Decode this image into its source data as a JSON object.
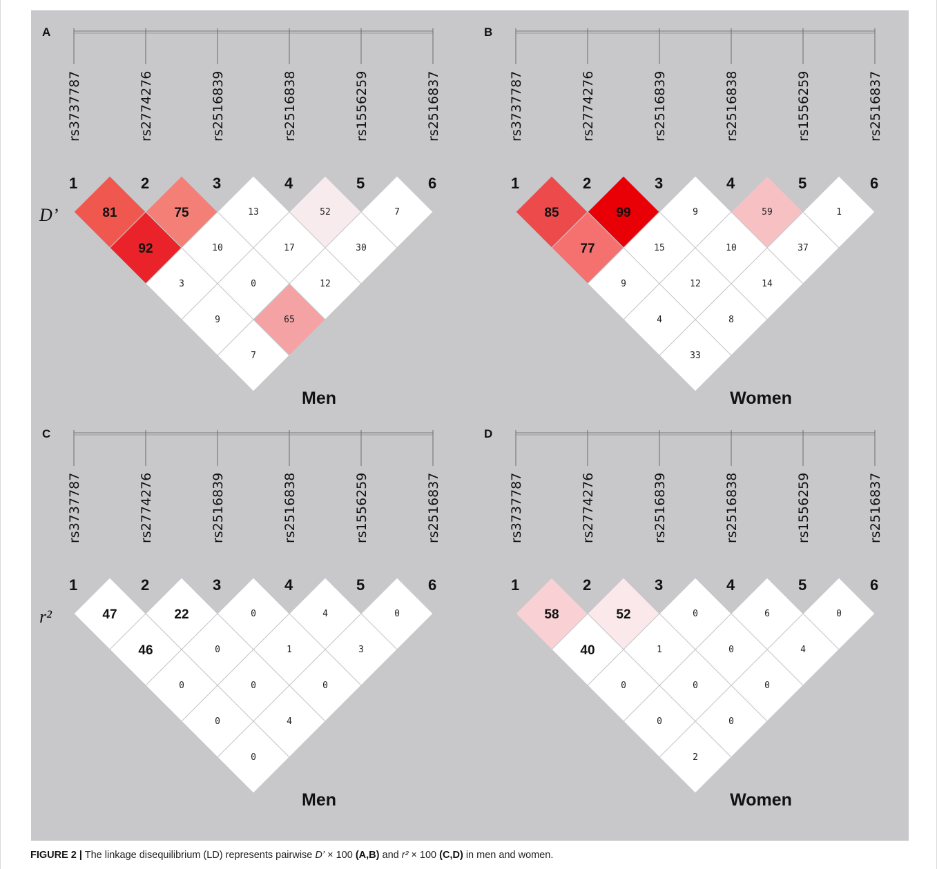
{
  "snps": [
    "rs3737787",
    "rs2774276",
    "rs2516839",
    "rs2516838",
    "rs1556259",
    "rs2516837"
  ],
  "indices": [
    "1",
    "2",
    "3",
    "4",
    "5",
    "6"
  ],
  "panels": [
    {
      "letter": "A",
      "metric": "D’",
      "group": "Men",
      "pairs": [
        [
          81,
          75,
          13,
          52,
          7
        ],
        [
          92,
          10,
          17,
          30
        ],
        [
          3,
          0,
          12
        ],
        [
          9,
          65
        ],
        [
          7
        ]
      ],
      "big_values": [
        81,
        75,
        92
      ]
    },
    {
      "letter": "B",
      "metric": "",
      "group": "Women",
      "pairs": [
        [
          85,
          99,
          9,
          59,
          1
        ],
        [
          77,
          15,
          10,
          37
        ],
        [
          9,
          12,
          14
        ],
        [
          4,
          8
        ],
        [
          33
        ]
      ],
      "big_values": [
        85,
        99,
        77
      ]
    },
    {
      "letter": "C",
      "metric": "r²",
      "group": "Men",
      "pairs": [
        [
          47,
          22,
          0,
          4,
          0
        ],
        [
          46,
          0,
          1,
          3
        ],
        [
          0,
          0,
          0
        ],
        [
          0,
          4
        ],
        [
          0
        ]
      ],
      "big_values": [
        47,
        22,
        46
      ]
    },
    {
      "letter": "D",
      "metric": "",
      "group": "Women",
      "pairs": [
        [
          58,
          52,
          0,
          6,
          0
        ],
        [
          40,
          1,
          0,
          4
        ],
        [
          0,
          0,
          0
        ],
        [
          0,
          0
        ],
        [
          2
        ]
      ],
      "big_values": [
        58,
        52,
        40
      ]
    }
  ],
  "cell_colors": {
    "A": [
      [
        "#f0584f",
        "#f47f77",
        "#ffffff",
        "#f8ebed",
        "#ffffff"
      ],
      [
        "#ea2229",
        "#ffffff",
        "#ffffff",
        "#ffffff"
      ],
      [
        "#ffffff",
        "#ffffff",
        "#ffffff"
      ],
      [
        "#ffffff",
        "#f5a2a5"
      ],
      [
        "#ffffff"
      ]
    ],
    "B": [
      [
        "#ec4a4b",
        "#e80006",
        "#ffffff",
        "#f7c1c3",
        "#ffffff"
      ],
      [
        "#f5716f",
        "#ffffff",
        "#ffffff",
        "#ffffff"
      ],
      [
        "#ffffff",
        "#ffffff",
        "#ffffff"
      ],
      [
        "#ffffff",
        "#ffffff"
      ],
      [
        "#ffffff"
      ]
    ],
    "C": [
      [
        "#ffffff",
        "#ffffff",
        "#ffffff",
        "#ffffff",
        "#ffffff"
      ],
      [
        "#ffffff",
        "#ffffff",
        "#ffffff",
        "#ffffff"
      ],
      [
        "#ffffff",
        "#ffffff",
        "#ffffff"
      ],
      [
        "#ffffff",
        "#ffffff"
      ],
      [
        "#ffffff"
      ]
    ],
    "D": [
      [
        "#f9d1d4",
        "#fae8ea",
        "#ffffff",
        "#ffffff",
        "#ffffff"
      ],
      [
        "#ffffff",
        "#ffffff",
        "#ffffff",
        "#ffffff"
      ],
      [
        "#ffffff",
        "#ffffff",
        "#ffffff"
      ],
      [
        "#ffffff",
        "#ffffff"
      ],
      [
        "#ffffff"
      ]
    ]
  },
  "caption": {
    "label": "FIGURE 2 |",
    "t1": " The linkage disequilibrium (LD) represents pairwise ",
    "d_symbol": "D’",
    "t2": " × 100 ",
    "ab": "(A,B)",
    "t3": " and ",
    "r_symbol": "r²",
    "t4": " × 100 ",
    "cd": "(C,D)",
    "t5": " in men and women."
  }
}
